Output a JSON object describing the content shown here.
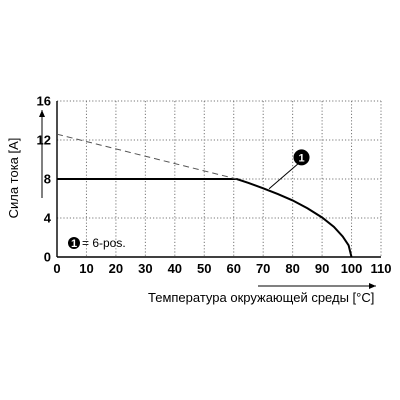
{
  "chart_data": {
    "type": "line",
    "xlabel": "Температура окружающей среды [°C]",
    "ylabel": "Сила тока [A]",
    "xlim": [
      0,
      110
    ],
    "ylim": [
      0,
      16
    ],
    "x_ticks": [
      "0",
      "10",
      "20",
      "30",
      "40",
      "50",
      "60",
      "70",
      "80",
      "90",
      "100",
      "110"
    ],
    "y_ticks": [
      "0",
      "4",
      "8",
      "12",
      "16"
    ],
    "grid": true,
    "series": [
      {
        "style": "solid",
        "color": "#000000",
        "points": [
          [
            0,
            8
          ],
          [
            61,
            8
          ],
          [
            65,
            7.6
          ],
          [
            70,
            7.05
          ],
          [
            75,
            6.45
          ],
          [
            80,
            5.8
          ],
          [
            85,
            5.0
          ],
          [
            90,
            4.05
          ],
          [
            94,
            3.1
          ],
          [
            97,
            2.1
          ],
          [
            99,
            1.2
          ],
          [
            100,
            0
          ]
        ]
      },
      {
        "style": "dashed",
        "color": "#555555",
        "points": [
          [
            0,
            12.6
          ],
          [
            61,
            8
          ]
        ]
      }
    ],
    "annotations": [
      {
        "marker": "1",
        "x": 72,
        "y": 7.0,
        "label_x": 82,
        "label_y": 9.6
      }
    ],
    "legend": {
      "marker": "1",
      "text": "= 6-pos.",
      "placement": "bottom-left"
    }
  }
}
